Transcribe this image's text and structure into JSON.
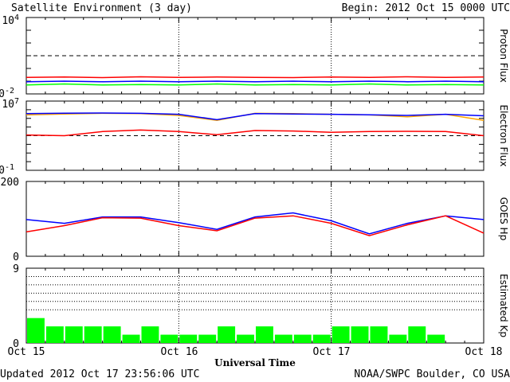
{
  "header": {
    "title": "Satellite Environment (3 day)",
    "begin": "Begin:  2012 Oct 15 0000 UTC"
  },
  "footer": {
    "updated": "Updated 2012 Oct 17 23:56:06 UTC",
    "credit": "NOAA/SWPC Boulder, CO USA"
  },
  "x_axis": {
    "title": "Universal Time",
    "ticks": [
      "Oct 15",
      "Oct 16",
      "Oct 17",
      "Oct 18"
    ]
  },
  "colors": {
    "red": "#ff0000",
    "blue": "#0000ff",
    "green": "#00ff00",
    "orange": "#ffa500",
    "kp_bar": "#00ff00"
  },
  "chart_data": [
    {
      "type": "line",
      "panel": "proton",
      "ylabel": "Proton Flux",
      "y_scale": "log",
      "ylim": [
        0.01,
        10000
      ],
      "y_tick_labels": {
        "top": "10",
        "top_exp": "4",
        "bottom": "10",
        "bottom_exp": "-2"
      },
      "threshold": 10,
      "x": [
        0,
        0.25,
        0.5,
        0.75,
        1,
        1.25,
        1.5,
        1.75,
        2,
        2.25,
        2.5,
        2.75,
        3
      ],
      "series": [
        {
          "color": "red",
          "values": [
            0.2,
            0.21,
            0.19,
            0.22,
            0.2,
            0.21,
            0.2,
            0.19,
            0.21,
            0.2,
            0.22,
            0.2,
            0.21
          ]
        },
        {
          "color": "blue",
          "values": [
            0.09,
            0.1,
            0.09,
            0.1,
            0.09,
            0.1,
            0.09,
            0.1,
            0.09,
            0.1,
            0.09,
            0.1,
            0.09
          ]
        },
        {
          "color": "green",
          "values": [
            0.05,
            0.06,
            0.05,
            0.055,
            0.05,
            0.06,
            0.05,
            0.055,
            0.05,
            0.06,
            0.05,
            0.055,
            0.05
          ]
        }
      ]
    },
    {
      "type": "line",
      "panel": "electron",
      "ylabel": "Electron Flux",
      "y_scale": "log",
      "ylim": [
        0.1,
        10000000
      ],
      "y_tick_labels": {
        "top": "10",
        "top_exp": "7",
        "bottom": "10",
        "bottom_exp": "-1"
      },
      "threshold": 1000,
      "x": [
        0,
        0.25,
        0.5,
        0.75,
        1,
        1.25,
        1.5,
        1.75,
        2,
        2.25,
        2.5,
        2.75,
        3
      ],
      "series": [
        {
          "color": "orange",
          "values": [
            250000,
            320000,
            380000,
            350000,
            220000,
            60000,
            380000,
            350000,
            300000,
            250000,
            150000,
            300000,
            60000
          ]
        },
        {
          "color": "blue",
          "values": [
            350000,
            400000,
            420000,
            380000,
            300000,
            70000,
            350000,
            320000,
            300000,
            260000,
            220000,
            300000,
            200000
          ]
        },
        {
          "color": "red",
          "values": [
            1200,
            1000,
            3000,
            4500,
            3000,
            1300,
            4000,
            3500,
            2500,
            3000,
            3200,
            3000,
            1000
          ]
        }
      ]
    },
    {
      "type": "line",
      "panel": "goes_hp",
      "ylabel": "GOES Hp",
      "ylim": [
        0,
        200
      ],
      "y_ticks": [
        0,
        200
      ],
      "x": [
        0,
        0.25,
        0.5,
        0.75,
        1,
        1.25,
        1.5,
        1.75,
        2,
        2.25,
        2.5,
        2.75,
        3
      ],
      "series": [
        {
          "color": "blue",
          "values": [
            98,
            88,
            105,
            105,
            90,
            72,
            105,
            116,
            95,
            60,
            88,
            108,
            98
          ]
        },
        {
          "color": "red",
          "values": [
            65,
            82,
            103,
            102,
            82,
            68,
            102,
            108,
            88,
            55,
            84,
            108,
            62
          ]
        }
      ]
    },
    {
      "type": "bar",
      "panel": "kp",
      "ylabel": "Estimated Kp",
      "ylim": [
        0,
        9
      ],
      "y_ticks": [
        0,
        9
      ],
      "grid_lines": [
        4,
        5,
        6,
        7,
        8,
        9
      ],
      "bar_width_hours": 3,
      "values": [
        3,
        2,
        2,
        2,
        2,
        1,
        2,
        1,
        1,
        1,
        2,
        1,
        2,
        1,
        1,
        1,
        2,
        2,
        2,
        1,
        2,
        1,
        0,
        0
      ]
    }
  ]
}
